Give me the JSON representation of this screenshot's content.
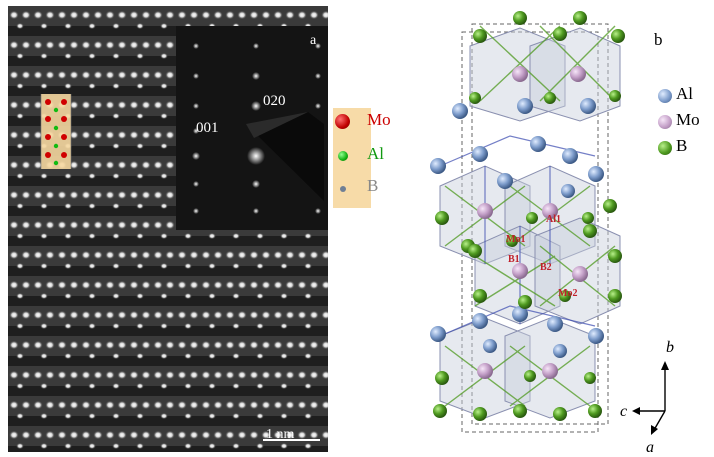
{
  "figure": {
    "panel_a": {
      "label": "a",
      "diffraction_labels": {
        "spot_001": "001",
        "spot_020": "020"
      },
      "legend": [
        {
          "name": "Mo",
          "color": "#d00000",
          "text_color": "#cc0000"
        },
        {
          "name": "Al",
          "color": "#11bb11",
          "text_color": "#119911"
        },
        {
          "name": "B",
          "color": "#8899aa",
          "text_color": "#888888"
        }
      ],
      "scale_bar": "1 nm"
    },
    "panel_b": {
      "label": "b",
      "legend": [
        {
          "name": "Al",
          "color": "#7f9fc8"
        },
        {
          "name": "Mo",
          "color": "#c8a8cc"
        },
        {
          "name": "B",
          "color": "#5a9a2a"
        }
      ],
      "site_labels": [
        "Al1",
        "Mo1",
        "B1",
        "B2",
        "Mo2"
      ],
      "axes": {
        "b": "b",
        "c": "c",
        "a": "a"
      }
    }
  }
}
